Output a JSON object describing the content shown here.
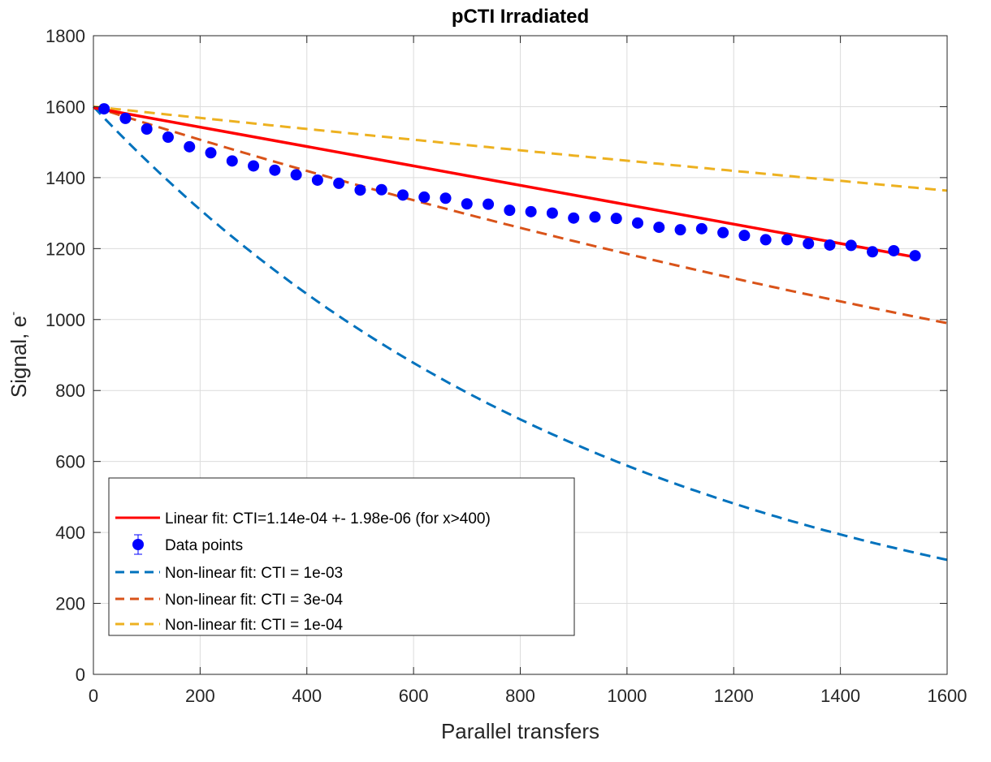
{
  "chart_data": {
    "type": "line",
    "title": "pCTI Irradiated",
    "xlabel": "Parallel transfers",
    "ylabel_main": "Signal, e",
    "ylabel_superscript": "-",
    "xlim": [
      0,
      1600
    ],
    "ylim": [
      0,
      1800
    ],
    "x_ticks": [
      0,
      200,
      400,
      600,
      800,
      1000,
      1200,
      1400,
      1600
    ],
    "x_tick_labels": [
      "0",
      "200",
      "400",
      "600",
      "800",
      "1000",
      "1200",
      "1400",
      "1600"
    ],
    "y_ticks": [
      0,
      200,
      400,
      600,
      800,
      1000,
      1200,
      1400,
      1600,
      1800
    ],
    "y_tick_labels": [
      "0",
      "200",
      "400",
      "600",
      "800",
      "1000",
      "1200",
      "1400",
      "1600",
      "1800"
    ],
    "grid": true,
    "legend_position": "lower-left",
    "initial_signal": 1600,
    "series": [
      {
        "name": "Linear fit: CTI=1.14e-04 +- 1.98e-06 (for x>400)",
        "kind": "linear-fit",
        "color": "#ff0000",
        "x": [
          0,
          1540
        ],
        "y": [
          1597,
          1176
        ]
      },
      {
        "name": "Data points",
        "kind": "scatter-errorbar",
        "color": "#0000ff",
        "x": [
          20,
          60,
          100,
          140,
          180,
          220,
          260,
          300,
          340,
          380,
          420,
          460,
          500,
          540,
          580,
          620,
          660,
          700,
          740,
          780,
          820,
          860,
          900,
          940,
          980,
          1020,
          1060,
          1100,
          1140,
          1180,
          1220,
          1260,
          1300,
          1340,
          1380,
          1420,
          1460,
          1500,
          1540
        ],
        "y": [
          1594,
          1567,
          1537,
          1514,
          1487,
          1470,
          1447,
          1433,
          1421,
          1408,
          1393,
          1384,
          1365,
          1366,
          1351,
          1345,
          1342,
          1326,
          1325,
          1308,
          1304,
          1300,
          1286,
          1289,
          1285,
          1272,
          1260,
          1253,
          1256,
          1245,
          1237,
          1225,
          1225,
          1214,
          1210,
          1209,
          1191,
          1194,
          1180
        ]
      },
      {
        "name": "Non-linear fit: CTI = 1e-03",
        "kind": "model",
        "cti": 0.001,
        "color": "#0072bd"
      },
      {
        "name": "Non-linear fit: CTI = 3e-04",
        "kind": "model",
        "cti": 0.0003,
        "color": "#d95319"
      },
      {
        "name": "Non-linear fit: CTI = 1e-04",
        "kind": "model",
        "cti": 0.0001,
        "color": "#edb120"
      }
    ]
  }
}
